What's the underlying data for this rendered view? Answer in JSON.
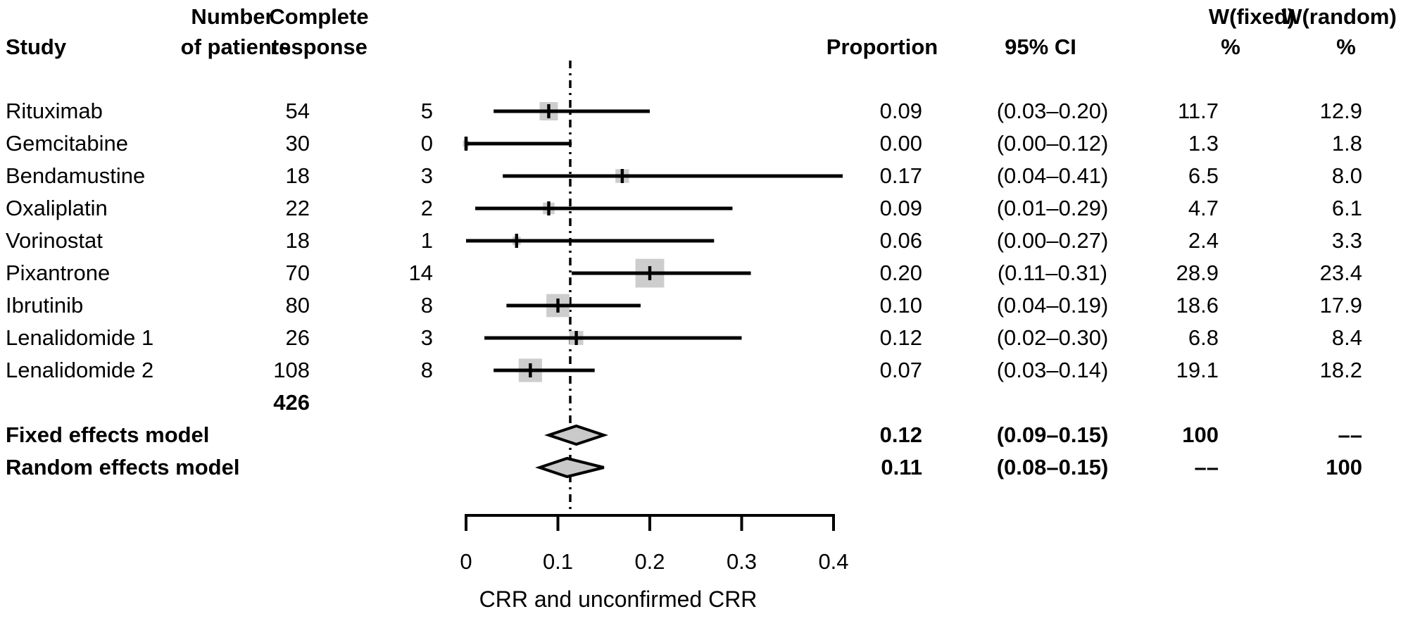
{
  "headers": {
    "study": "Study",
    "patients_line1": "Number",
    "patients_line2": "of patients",
    "response_line1": "Complete",
    "response_line2": "response",
    "proportion": "Proportion",
    "ci": "95% CI",
    "w_fixed_line1": "W(fixed)",
    "w_fixed_line2": "%",
    "w_random_line1": "W(random)",
    "w_random_line2": "%"
  },
  "totals": {
    "patients_total": "426"
  },
  "colors": {
    "square_fill": "#cdcdcd",
    "diamond_fill": "#c9c9c9",
    "line": "#000000",
    "background": "#ffffff"
  },
  "chart_data": {
    "type": "forest",
    "xlabel": "CRR and unconfirmed CRR",
    "x_ticks": [
      "0",
      "0.1",
      "0.2",
      "0.3",
      "0.4"
    ],
    "x_tick_values": [
      0,
      0.1,
      0.2,
      0.3,
      0.4
    ],
    "xlim": [
      0,
      0.4
    ],
    "reference_line": 0.1134,
    "grid": false,
    "studies": [
      {
        "name": "Rituximab",
        "patients": "54",
        "response": "5",
        "proportion": "0.09",
        "ci": "(0.03–0.20)",
        "w_fixed": "11.7",
        "w_random": "12.9",
        "est": 0.09,
        "lo": 0.03,
        "hi": 0.2,
        "weight": 11.7,
        "boundary_cap": false
      },
      {
        "name": "Gemcitabine",
        "patients": "30",
        "response": "0",
        "proportion": "0.00",
        "ci": "(0.00–0.12)",
        "w_fixed": "1.3",
        "w_random": "1.8",
        "est": 0.0,
        "lo": 0.0,
        "hi": 0.115,
        "weight": 1.3,
        "boundary_cap": true
      },
      {
        "name": "Bendamustine",
        "patients": "18",
        "response": "3",
        "proportion": "0.17",
        "ci": "(0.04–0.41)",
        "w_fixed": "6.5",
        "w_random": "8.0",
        "est": 0.17,
        "lo": 0.04,
        "hi": 0.41,
        "weight": 6.5,
        "boundary_cap": false
      },
      {
        "name": "Oxaliplatin",
        "patients": "22",
        "response": "2",
        "proportion": "0.09",
        "ci": "(0.01–0.29)",
        "w_fixed": "4.7",
        "w_random": "6.1",
        "est": 0.09,
        "lo": 0.01,
        "hi": 0.29,
        "weight": 4.7,
        "boundary_cap": false
      },
      {
        "name": "Vorinostat",
        "patients": "18",
        "response": "1",
        "proportion": "0.06",
        "ci": "(0.00–0.27)",
        "w_fixed": "2.4",
        "w_random": "3.3",
        "est": 0.055,
        "lo": 0.0,
        "hi": 0.27,
        "weight": 2.4,
        "boundary_cap": false
      },
      {
        "name": "Pixantrone",
        "patients": "70",
        "response": "14",
        "proportion": "0.20",
        "ci": "(0.11–0.31)",
        "w_fixed": "28.9",
        "w_random": "23.4",
        "est": 0.2,
        "lo": 0.115,
        "hi": 0.31,
        "weight": 28.9,
        "boundary_cap": false
      },
      {
        "name": "Ibrutinib",
        "patients": "80",
        "response": "8",
        "proportion": "0.10",
        "ci": "(0.04–0.19)",
        "w_fixed": "18.6",
        "w_random": "17.9",
        "est": 0.1,
        "lo": 0.044,
        "hi": 0.19,
        "weight": 18.6,
        "boundary_cap": false
      },
      {
        "name": "Lenalidomide 1",
        "patients": "26",
        "response": "3",
        "proportion": "0.12",
        "ci": "(0.02–0.30)",
        "w_fixed": "6.8",
        "w_random": "8.4",
        "est": 0.12,
        "lo": 0.02,
        "hi": 0.3,
        "weight": 6.8,
        "boundary_cap": false
      },
      {
        "name": "Lenalidomide 2",
        "patients": "108",
        "response": "8",
        "proportion": "0.07",
        "ci": "(0.03–0.14)",
        "w_fixed": "19.1",
        "w_random": "18.2",
        "est": 0.07,
        "lo": 0.03,
        "hi": 0.14,
        "weight": 19.1,
        "boundary_cap": false
      }
    ],
    "models": [
      {
        "name": "Fixed effects model",
        "proportion": "0.12",
        "ci": "(0.09–0.15)",
        "w_fixed": "100",
        "w_random": "––",
        "est": 0.12,
        "lo": 0.09,
        "hi": 0.15
      },
      {
        "name": "Random effects model",
        "proportion": "0.11",
        "ci": "(0.08–0.15)",
        "w_fixed": "––",
        "w_random": "100",
        "est": 0.11,
        "lo": 0.08,
        "hi": 0.15
      }
    ]
  }
}
